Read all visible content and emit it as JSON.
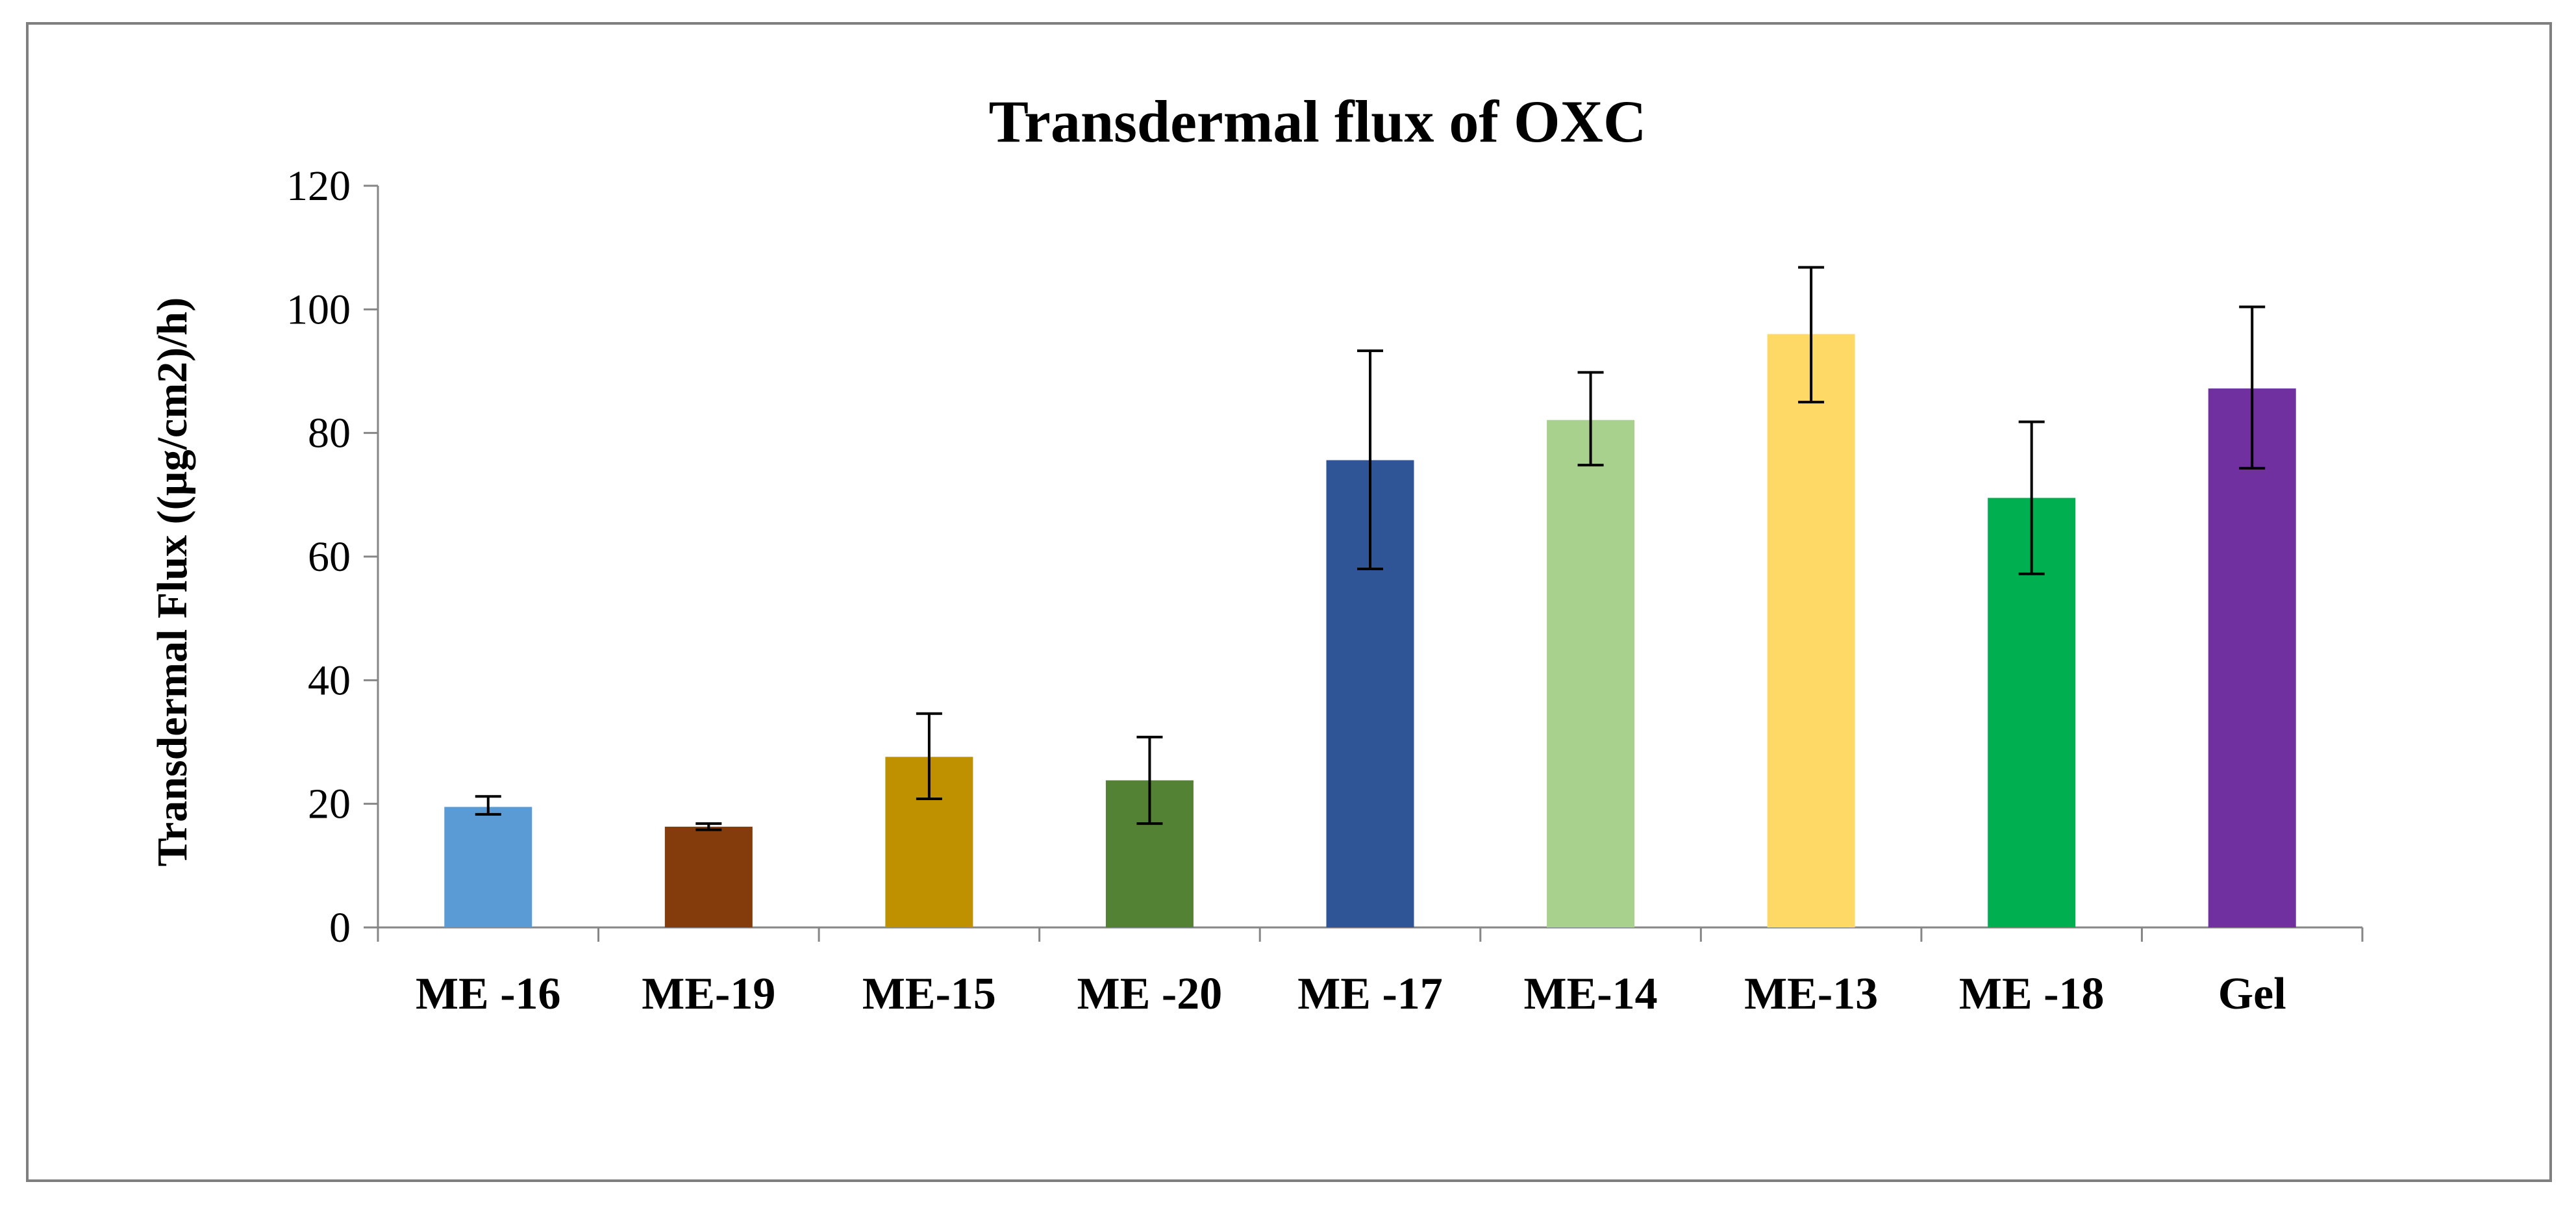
{
  "chart_data": {
    "type": "bar",
    "title": "Transdermal flux of OXC",
    "xlabel": "",
    "ylabel": "Transdermal  Flux  ((µg/cm2)/h)",
    "ylim": [
      0,
      120
    ],
    "yticks": [
      0,
      20,
      40,
      60,
      80,
      100,
      120
    ],
    "grid": false,
    "categories": [
      "ME -16",
      "ME-19",
      "ME-15",
      "ME -20",
      "ME -17",
      "ME-14",
      "ME-13",
      "ME -18",
      "Gel"
    ],
    "values": [
      19.5,
      16.3,
      27.6,
      23.8,
      75.6,
      82.1,
      96.0,
      69.5,
      87.2
    ],
    "error_low": [
      18.3,
      15.8,
      20.8,
      16.8,
      58.0,
      74.8,
      85.0,
      57.2,
      74.3
    ],
    "error_high": [
      21.2,
      16.8,
      34.6,
      30.8,
      93.3,
      89.8,
      106.8,
      81.8,
      100.4
    ],
    "colors": [
      "#5b9bd5",
      "#843c0c",
      "#bf9000",
      "#548235",
      "#2f5597",
      "#a9d18e",
      "#ffd966",
      "#00b050",
      "#7030a0"
    ]
  }
}
